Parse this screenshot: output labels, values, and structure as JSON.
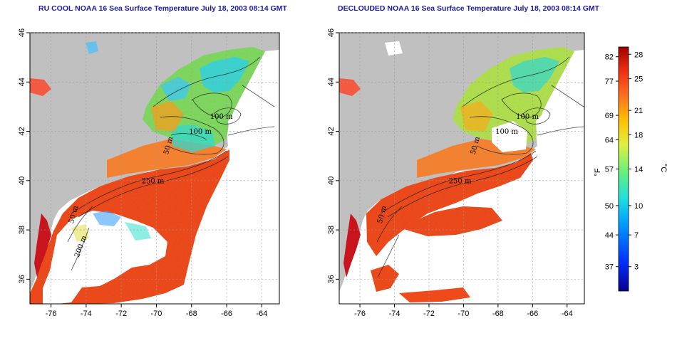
{
  "panels": [
    {
      "title": "RU COOL NOAA 16 Sea Surface Temperature July 18, 2003 08:14 GMT",
      "contour_labels": [
        "100 m",
        "100 m",
        "50 m",
        "250 m",
        "50 m",
        "200 m"
      ]
    },
    {
      "title": "DECLOUDED NOAA 16 Sea Surface Temperature July 18, 2003 08:14 GMT",
      "contour_labels": [
        "100 m",
        "100 m",
        "50 m",
        "250 m",
        "50 m"
      ]
    }
  ],
  "axes": {
    "x_ticks": [
      "-76",
      "-74",
      "-72",
      "-70",
      "-68",
      "-66",
      "-64"
    ],
    "y_ticks": [
      "36",
      "38",
      "40",
      "42",
      "44",
      "46"
    ],
    "xlim": [
      -77.2,
      -63.0
    ],
    "ylim": [
      35.0,
      46.0
    ]
  },
  "colorbar": {
    "f_label": "°F",
    "c_label": "°C",
    "f_ticks": [
      "82",
      "77",
      "69",
      "64",
      "57",
      "50",
      "44",
      "37"
    ],
    "c_ticks": [
      "28",
      "25",
      "21",
      "18",
      "14",
      "10",
      "7",
      "3"
    ],
    "colors": [
      "#08008c",
      "#0030ff",
      "#00a0ff",
      "#20e0e0",
      "#60f080",
      "#e0f040",
      "#ffc000",
      "#ff7020",
      "#f03010",
      "#a00000"
    ]
  },
  "colors": {
    "land": "#c0c0c0",
    "water_warm": "#f05020",
    "water_cool": "#90e060",
    "cloud": "#ffffff"
  }
}
